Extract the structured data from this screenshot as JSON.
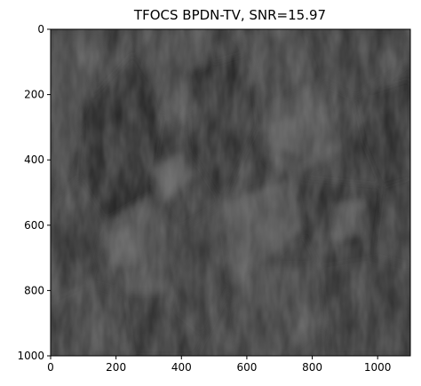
{
  "figure": {
    "title": "TFOCS BPDN-TV, SNR=15.97"
  },
  "image_axes": {
    "x_ticks": [
      "0",
      "200",
      "400",
      "600",
      "800",
      "1000"
    ],
    "y_ticks": [
      "0",
      "200",
      "400",
      "600",
      "800",
      "1000"
    ],
    "x_extent": [
      0,
      1100
    ],
    "y_extent": [
      0,
      1000
    ],
    "colormap": "gray",
    "image_content": "dark grayscale seismic-like reconstruction with diagonal textured streaks"
  },
  "colors": {
    "background": "#ffffff",
    "image_dark": "#1e1e1e",
    "image_mid": "#3a3a3a",
    "image_light": "#5a5a5a"
  }
}
